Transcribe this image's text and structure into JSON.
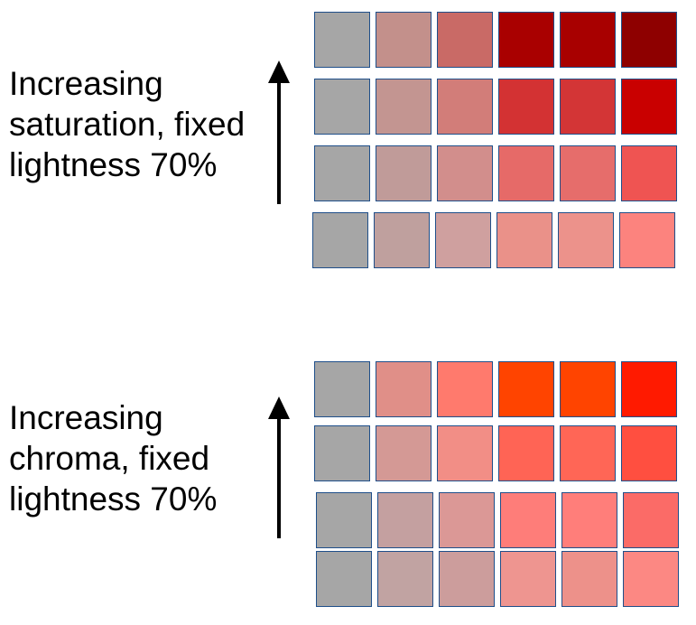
{
  "panels": [
    {
      "id": "saturation",
      "label_lines": [
        "Increasing",
        "saturation, fixed",
        "lightness 70%"
      ],
      "rows_top_to_bottom": [
        [
          "#a6a6a6",
          "#c3908b",
          "#c96a66",
          "#a90000",
          "#a80000",
          "#8e0000"
        ],
        [
          "#a6a6a6",
          "#c39591",
          "#d27d79",
          "#d33233",
          "#d33536",
          "#c90000"
        ],
        [
          "#a6a6a6",
          "#c09b99",
          "#d28e8c",
          "#e66a68",
          "#e66d6b",
          "#ef5452"
        ],
        [
          "#a6a6a6",
          "#bfa09e",
          "#cfa09f",
          "#ea9189",
          "#ec928b",
          "#fc837e"
        ]
      ]
    },
    {
      "id": "chroma",
      "label_lines": [
        "Increasing",
        "chroma, fixed",
        "lightness 70%"
      ],
      "rows_top_to_bottom": [
        [
          "#a6a6a6",
          "#e08f88",
          "#ff7a6d",
          "#ff4400",
          "#ff4400",
          "#ff1a00"
        ],
        [
          "#a6a6a6",
          "#d49995",
          "#f28e86",
          "#ff6455",
          "#ff6656",
          "#ff4f40"
        ],
        [
          "#a6a6a6",
          "#c4a0a0",
          "#db9896",
          "#fe7d79",
          "#ff7e7a",
          "#fb6b67"
        ],
        [
          "#a6a6a6",
          "#c1a3a2",
          "#cc9d9c",
          "#ee9590",
          "#ed918a",
          "#fc8883"
        ]
      ]
    }
  ]
}
